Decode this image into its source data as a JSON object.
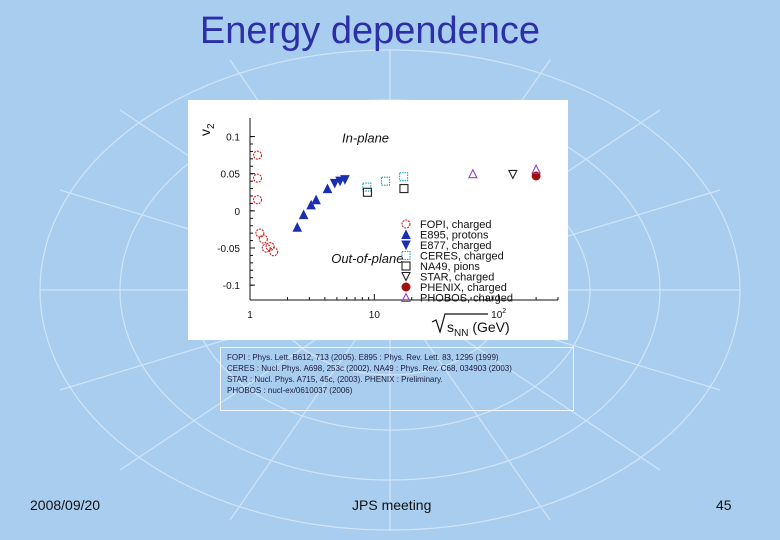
{
  "slide": {
    "title": "Energy dependence",
    "footer_left": "2008/09/20",
    "footer_center": "JPS meeting",
    "footer_right": "45"
  },
  "references": [
    "FOPI : Phys. Lett. B612, 713 (2005).   E895 : Phys. Rev. Lett. 83, 1295 (1999)",
    "CERES : Nucl. Phys. A698, 253c (2002).   NA49 : Phys. Rev. C68, 034903 (2003)",
    "STAR : Nucl. Phys. A715, 45c, (2003).   PHENIX : Preliminary.",
    "PHOBOS : nucl-ex/0610037 (2006)"
  ],
  "colors": {
    "background": "#a9cdef",
    "title": "#2b2fa8",
    "red": "#d42020",
    "blue": "#1a2fb0",
    "cyan": "#1aa0c8",
    "purple": "#9a40c8",
    "darkred": "#a01010"
  },
  "chart_data": {
    "type": "scatter",
    "xscale": "log",
    "xlim": [
      1,
      300
    ],
    "ylim": [
      -0.12,
      0.125
    ],
    "ylabel_main": "v",
    "ylabel_sub": "2",
    "xlabel_sqrt": "s",
    "xlabel_sub": "NN",
    "xlabel_unit": "(GeV)",
    "x_ticks": [
      {
        "value": 1,
        "label": "1",
        "sup": ""
      },
      {
        "value": 10,
        "label": "10",
        "sup": ""
      },
      {
        "value": 100,
        "label": "10",
        "sup": "2"
      }
    ],
    "y_ticks": [
      {
        "value": 0.1,
        "label": "0.1"
      },
      {
        "value": 0.05,
        "label": "0.05"
      },
      {
        "value": 0,
        "label": "0"
      },
      {
        "value": -0.05,
        "label": "-0.05"
      },
      {
        "value": -0.1,
        "label": "-0.1"
      }
    ],
    "annotations": [
      {
        "text": "In-plane",
        "x": 5.5,
        "y": 0.092
      },
      {
        "text": "Out-of-plane",
        "x": 4.5,
        "y": -0.07
      }
    ],
    "legend_position": "right",
    "series": [
      {
        "name": "FOPI, charged",
        "marker": "circle-open",
        "color": "#d42020",
        "points": [
          [
            1.15,
            0.075
          ],
          [
            1.15,
            0.044
          ],
          [
            1.15,
            0.015
          ],
          [
            1.2,
            -0.03
          ],
          [
            1.28,
            -0.038
          ],
          [
            1.35,
            -0.05
          ],
          [
            1.45,
            -0.048
          ],
          [
            1.55,
            -0.055
          ]
        ]
      },
      {
        "name": "E895, protons",
        "marker": "triangle-up",
        "color": "#1a2fb0",
        "points": [
          [
            2.4,
            -0.022
          ],
          [
            2.7,
            -0.005
          ],
          [
            3.1,
            0.008
          ],
          [
            3.4,
            0.015
          ],
          [
            4.2,
            0.03
          ]
        ]
      },
      {
        "name": "E877, charged",
        "marker": "triangle-down",
        "color": "#1a2fb0",
        "points": [
          [
            4.8,
            0.037
          ],
          [
            5.3,
            0.04
          ],
          [
            5.8,
            0.042
          ]
        ]
      },
      {
        "name": "CERES, charged",
        "marker": "square-dotted",
        "color": "#1aa0c8",
        "points": [
          [
            8.7,
            0.032
          ],
          [
            12.3,
            0.04
          ],
          [
            17.2,
            0.046
          ]
        ]
      },
      {
        "name": "NA49, pions",
        "marker": "square-open",
        "color": "#222222",
        "points": [
          [
            8.8,
            0.025
          ],
          [
            17.3,
            0.03
          ]
        ]
      },
      {
        "name": "STAR, charged",
        "marker": "triangle-down-open",
        "color": "#222222",
        "points": [
          [
            130,
            0.049
          ]
        ]
      },
      {
        "name": "PHENIX, charged",
        "marker": "circle-filled",
        "color": "#a01010",
        "points": [
          [
            200,
            0.047
          ]
        ]
      },
      {
        "name": "PHOBOS, charged",
        "marker": "triangle-up-open",
        "color": "#9a40c8",
        "points": [
          [
            62,
            0.05
          ],
          [
            200,
            0.056
          ]
        ]
      }
    ]
  }
}
